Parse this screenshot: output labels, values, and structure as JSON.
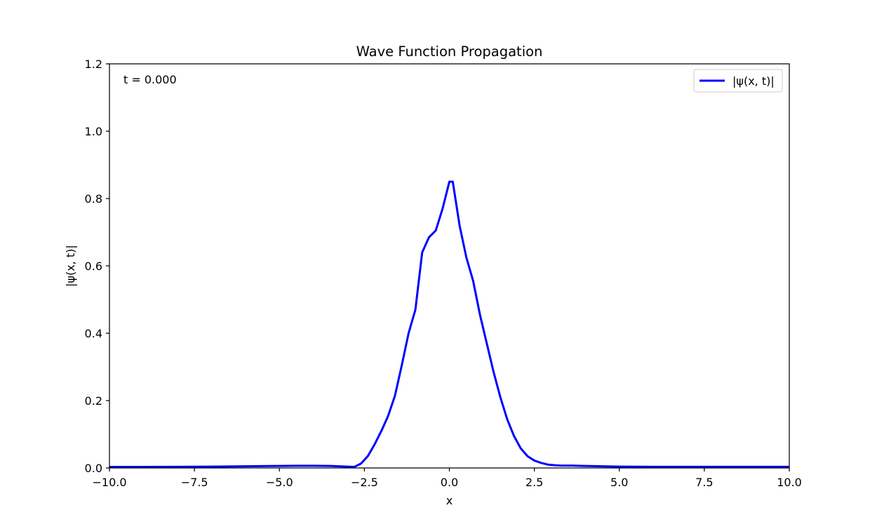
{
  "chart_data": {
    "type": "line",
    "title": "Wave Function Propagation",
    "xlabel": "x",
    "ylabel": "|ψ(x, t)|",
    "xlim": [
      -10,
      10
    ],
    "ylim": [
      0,
      1.2
    ],
    "xticks": [
      -10,
      -7.5,
      -5,
      -2.5,
      0,
      2.5,
      5,
      7.5,
      10
    ],
    "xtick_labels": [
      "−10.0",
      "−7.5",
      "−5.0",
      "−2.5",
      "0.0",
      "2.5",
      "5.0",
      "7.5",
      "10.0"
    ],
    "yticks": [
      0,
      0.2,
      0.4,
      0.6,
      0.8,
      1.0,
      1.2
    ],
    "ytick_labels": [
      "0.0",
      "0.2",
      "0.4",
      "0.6",
      "0.8",
      "1.0",
      "1.2"
    ],
    "grid": false,
    "legend_position": "top-right",
    "annotation": "t = 0.000",
    "series": [
      {
        "name": "|ψ(x, t)|",
        "color": "#0000ff",
        "x": [
          -10,
          -9,
          -8,
          -7,
          -6,
          -5,
          -4.5,
          -4,
          -3.5,
          -3,
          -2.8,
          -2.6,
          -2.4,
          -2.2,
          -2.0,
          -1.8,
          -1.6,
          -1.4,
          -1.2,
          -1.0,
          -0.8,
          -0.6,
          -0.4,
          -0.2,
          0.0,
          0.1,
          0.3,
          0.5,
          0.7,
          0.9,
          1.1,
          1.3,
          1.5,
          1.7,
          1.9,
          2.1,
          2.3,
          2.5,
          2.7,
          2.9,
          3.1,
          3.3,
          3.6,
          4.0,
          5.0,
          6.0,
          7.0,
          8.0,
          9.0,
          10.0
        ],
        "y": [
          0.003,
          0.003,
          0.0035,
          0.004,
          0.005,
          0.006,
          0.0065,
          0.0065,
          0.006,
          0.004,
          0.003,
          0.013,
          0.035,
          0.07,
          0.11,
          0.155,
          0.215,
          0.305,
          0.4,
          0.47,
          0.64,
          0.685,
          0.705,
          0.77,
          0.85,
          0.85,
          0.72,
          0.625,
          0.555,
          0.455,
          0.37,
          0.285,
          0.21,
          0.145,
          0.095,
          0.058,
          0.035,
          0.022,
          0.015,
          0.01,
          0.008,
          0.007,
          0.007,
          0.006,
          0.004,
          0.0035,
          0.0035,
          0.0035,
          0.0035,
          0.0035
        ]
      }
    ]
  }
}
